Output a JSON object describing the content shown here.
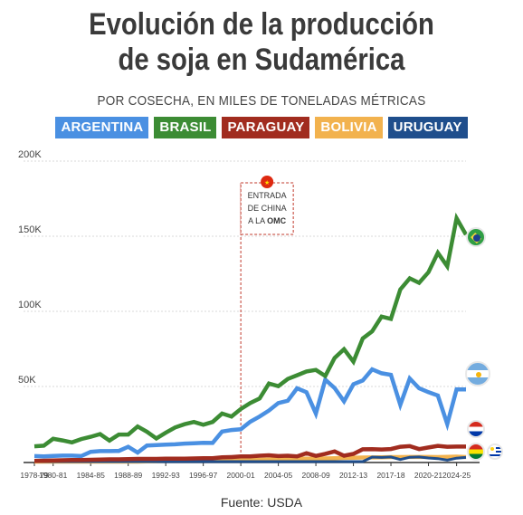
{
  "title_line1": "Evolución de la producción",
  "title_line2": "de soja en Sudamérica",
  "subtitle": "POR COSECHA, EN MILES DE TONELADAS MÉTRICAS",
  "source": "Fuente: USDA",
  "annotation": {
    "line1": "ENTRADA",
    "line2": "DE CHINA",
    "line3": "A LA",
    "line3_bold": "OMC",
    "year_label": "2000-01"
  },
  "chart_data": {
    "type": "line",
    "xlabel": "",
    "ylabel": "",
    "ylim": [
      0,
      200000
    ],
    "y_ticks": [
      0,
      50000,
      100000,
      150000,
      200000
    ],
    "y_tick_labels": [
      "",
      "50K",
      "100K",
      "150K",
      "200K"
    ],
    "x_tick_labels": [
      "1978-79",
      "1980-81",
      "1984-85",
      "1988-89",
      "1992-93",
      "1996-97",
      "2000-01",
      "2004-05",
      "2008-09",
      "2012-13",
      "2017-18",
      "2020-21",
      "2024-25"
    ],
    "x_tick_years": [
      1978,
      1980,
      1984,
      1988,
      1992,
      1996,
      2000,
      2004,
      2008,
      2012,
      2016,
      2020,
      2023
    ],
    "x": [
      1978,
      1979,
      1980,
      1981,
      1982,
      1983,
      1984,
      1985,
      1986,
      1987,
      1988,
      1989,
      1990,
      1991,
      1992,
      1993,
      1994,
      1995,
      1996,
      1997,
      1998,
      1999,
      2000,
      2001,
      2002,
      2003,
      2004,
      2005,
      2006,
      2007,
      2008,
      2009,
      2010,
      2011,
      2012,
      2013,
      2014,
      2015,
      2016,
      2017,
      2018,
      2019,
      2020,
      2021,
      2022,
      2023,
      2024
    ],
    "series": [
      {
        "name": "ARGENTINA",
        "color": "#4a90e2",
        "values": [
          3700,
          3500,
          3800,
          4000,
          4000,
          3700,
          6500,
          7000,
          7000,
          7100,
          9900,
          6000,
          10700,
          11000,
          11300,
          11500,
          12000,
          12200,
          12500,
          12400,
          20000,
          21000,
          21500,
          26500,
          30000,
          34000,
          39000,
          40500,
          48800,
          46200,
          32000,
          54500,
          49000,
          40100,
          51500,
          54000,
          61400,
          58800,
          57800,
          37800,
          55300,
          48800,
          46200,
          44000,
          25000,
          48100,
          48000
        ]
      },
      {
        "name": "BRASIL",
        "color": "#3c8c34",
        "values": [
          10200,
          10600,
          15200,
          14100,
          12800,
          15000,
          16500,
          18300,
          14000,
          18000,
          18000,
          23400,
          19900,
          15400,
          19200,
          22700,
          24900,
          26400,
          24500,
          26400,
          32000,
          30000,
          35000,
          39000,
          42000,
          52000,
          50200,
          55000,
          57500,
          60000,
          61000,
          57000,
          69000,
          74800,
          66500,
          82000,
          86700,
          96500,
          95000,
          114600,
          122000,
          119000,
          126000,
          139000,
          130000,
          162000,
          151000
        ]
      },
      {
        "name": "PARAGUAY",
        "color": "#a12c1f",
        "values": [
          500,
          600,
          700,
          900,
          1000,
          1000,
          1200,
          1300,
          1500,
          1500,
          1700,
          1800,
          1800,
          1800,
          1900,
          1900,
          2000,
          2100,
          2200,
          2300,
          2900,
          3000,
          3500,
          3500,
          3900,
          4200,
          3700,
          3900,
          3500,
          5600,
          3800,
          5200,
          6800,
          3900,
          5100,
          8200,
          8300,
          8100,
          8400,
          9900,
          10300,
          8300,
          9400,
          10500,
          9900,
          10000,
          10000
        ]
      },
      {
        "name": "BOLIVIA",
        "color": "#f2b24e",
        "values": [
          0,
          0,
          0,
          0,
          0,
          0,
          0,
          0,
          0,
          0,
          0,
          0,
          200,
          300,
          400,
          500,
          600,
          700,
          800,
          900,
          1000,
          1100,
          1100,
          1200,
          1200,
          1400,
          1700,
          1800,
          1900,
          2000,
          2000,
          2100,
          2200,
          2500,
          2600,
          2700,
          2800,
          2900,
          3000,
          3000,
          3100,
          3100,
          3100,
          3000,
          3200,
          3300,
          3000
        ]
      },
      {
        "name": "URUGUAY",
        "color": "#1f4e8c",
        "values": [
          0,
          0,
          0,
          0,
          0,
          0,
          0,
          0,
          0,
          0,
          0,
          0,
          0,
          0,
          0,
          0,
          0,
          0,
          0,
          0,
          0,
          0,
          0,
          0,
          0,
          0,
          0,
          0,
          0,
          0,
          0,
          0,
          0,
          0,
          0,
          0,
          3000,
          2800,
          3100,
          1400,
          2900,
          3100,
          2400,
          2000,
          1000,
          2300,
          2800
        ]
      }
    ]
  }
}
